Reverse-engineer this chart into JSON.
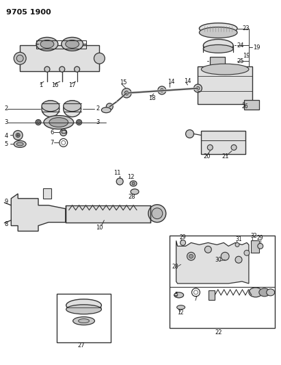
{
  "title": "9705 1900",
  "bg": "#ffffff",
  "lc": "#333333",
  "tc": "#111111",
  "fw": 4.11,
  "fh": 5.33,
  "dpi": 100,
  "parts_gray": "#c8c8c8",
  "parts_light": "#e0e0e0",
  "parts_dark": "#999999"
}
